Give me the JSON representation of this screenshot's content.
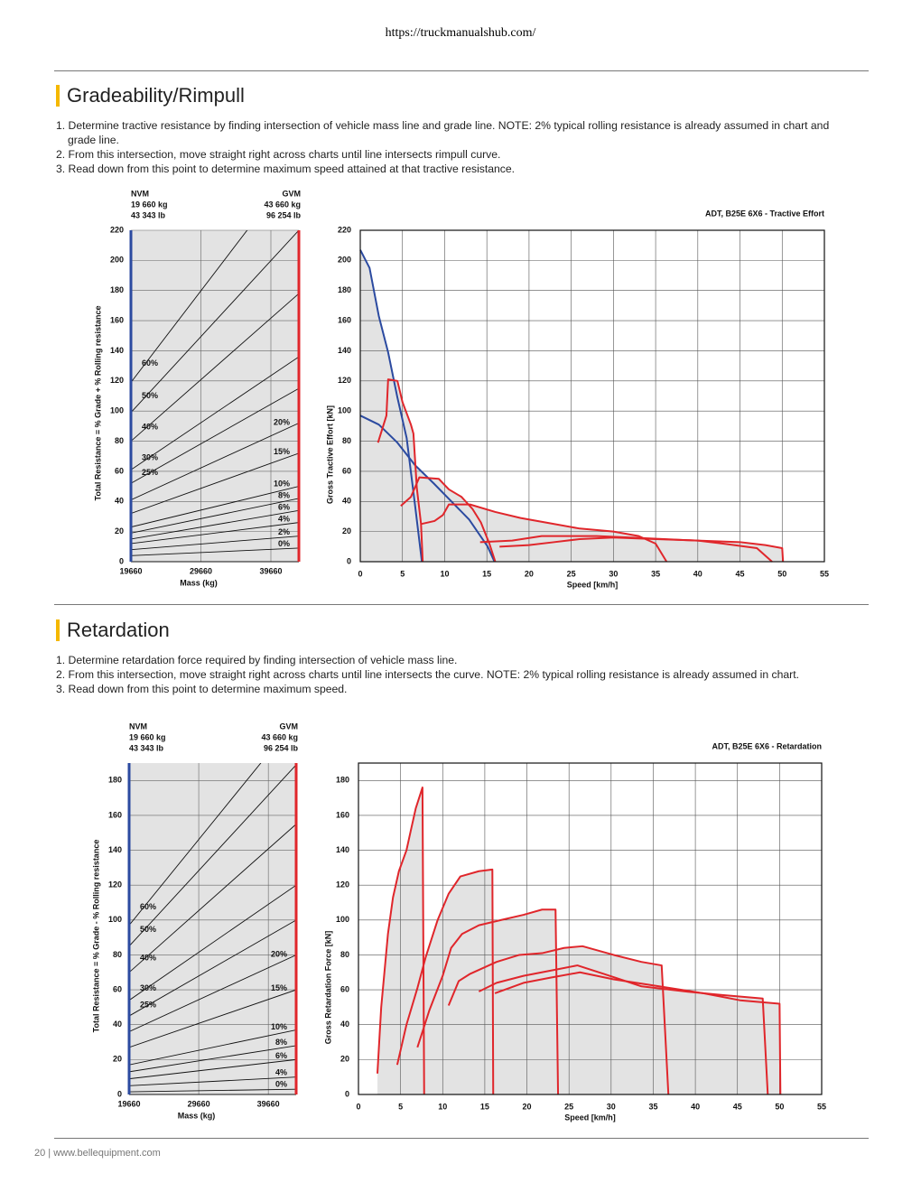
{
  "header": {
    "url": "https://truckmanualshub.com/"
  },
  "sections": [
    {
      "title": "Gradeability/Rimpull",
      "steps": [
        "1. Determine tractive resistance by finding intersection of vehicle mass line and grade line. NOTE: 2% typical rolling resistance is already assumed in chart and grade line.",
        "2. From this intersection, move straight right across charts until line intersects rimpull curve.",
        "3. Read down from this point to determine maximum speed attained at that tractive resistance."
      ],
      "mass_chart": {
        "type": "line",
        "nvm": {
          "label": "NVM",
          "mass_kg": "19 660 kg",
          "mass_lb": "43 343 lb",
          "color": "#2b4aa0"
        },
        "gvm": {
          "label": "GVM",
          "mass_kg": "43 660 kg",
          "mass_lb": "96 254 lb",
          "color": "#e0262b"
        },
        "y_label": "Total Resistance = % Grade + % Rolling resistance",
        "x_label": "Mass (kg)",
        "x": [
          19660,
          43660
        ],
        "xlim": [
          19660,
          43660
        ],
        "xticks": [
          19660,
          29660,
          39660
        ],
        "ylim": [
          0,
          220
        ],
        "yticks": [
          0,
          20,
          40,
          60,
          80,
          100,
          120,
          140,
          160,
          180,
          200,
          220
        ],
        "grid": true,
        "series": [
          {
            "name": "0%",
            "values": [
              4,
              9
            ]
          },
          {
            "name": "2%",
            "values": [
              8,
              17
            ]
          },
          {
            "name": "4%",
            "values": [
              12,
              26
            ]
          },
          {
            "name": "6%",
            "values": [
              15,
              34
            ]
          },
          {
            "name": "8%",
            "values": [
              19,
              42
            ]
          },
          {
            "name": "10%",
            "values": [
              23,
              50
            ]
          },
          {
            "name": "15%",
            "values": [
              32,
              72
            ]
          },
          {
            "name": "20%",
            "values": [
              41,
              92
            ]
          },
          {
            "name": "25%",
            "values": [
              52,
              115
            ]
          },
          {
            "name": "30%",
            "values": [
              61,
              136
            ]
          },
          {
            "name": "40%",
            "values": [
              80,
              178
            ]
          },
          {
            "name": "50%",
            "values": [
              99,
              220
            ]
          },
          {
            "name": "60%",
            "values": [
              119,
              265
            ]
          }
        ]
      },
      "speed_chart": {
        "type": "line",
        "title": "ADT, B25E 6X6 - Tractive Effort",
        "y_label": "Gross Tractive Effort [kN]",
        "x_label": "Speed [km/h]",
        "xlim": [
          0,
          55
        ],
        "xticks": [
          0,
          5,
          10,
          15,
          20,
          25,
          30,
          35,
          40,
          45,
          50,
          55
        ],
        "ylim": [
          0,
          220
        ],
        "yticks": [
          0,
          20,
          40,
          60,
          80,
          100,
          120,
          140,
          160,
          180,
          200,
          220
        ],
        "grid": true,
        "series": [
          {
            "color": "#2b4aa0",
            "x": [
              0,
              1.1,
              2.2,
              3.3,
              4.4,
              5.5,
              6.5,
              7.3
            ],
            "values": [
              207,
              195,
              163,
              139,
              109,
              82,
              37,
              0
            ]
          },
          {
            "color": "#2b4aa0",
            "x": [
              0,
              2.2,
              4.4,
              6.5,
              8.7,
              10.8,
              12.9,
              14,
              15.1,
              15.9
            ],
            "values": [
              97,
              91,
              79,
              64,
              52,
              40,
              28,
              19,
              10,
              0
            ]
          },
          {
            "color": "#e0262b",
            "x": [
              2.1,
              3.1,
              3.3,
              4.4,
              5,
              6,
              6.3,
              6.7,
              7.2,
              7.4
            ],
            "values": [
              79,
              97,
              121,
              120,
              106,
              91,
              85,
              49,
              25,
              0
            ]
          },
          {
            "color": "#e0262b",
            "x": [
              4.8,
              6,
              7,
              9.3,
              10.5,
              12,
              13.3,
              14.3,
              15.3,
              16
            ],
            "values": [
              37,
              43,
              56,
              55,
              48,
              43,
              35,
              26,
              12,
              0
            ]
          },
          {
            "color": "#e0262b",
            "x": [
              7.2,
              8.8,
              9.8,
              10.5,
              13,
              16,
              19,
              22,
              26,
              30,
              33,
              35,
              36.3
            ],
            "values": [
              25,
              27,
              31,
              38,
              38,
              33,
              29,
              26,
              22,
              20,
              17,
              12,
              0
            ]
          },
          {
            "color": "#e0262b",
            "x": [
              14.2,
              18,
              21.5,
              24,
              28,
              32,
              36,
              40,
              43,
              47,
              48.8
            ],
            "values": [
              13,
              14,
              17,
              17,
              17,
              16,
              15,
              14,
              12,
              9,
              0
            ]
          },
          {
            "color": "#e0262b",
            "x": [
              16.5,
              20,
              23,
              26,
              30,
              35,
              40,
              45,
              48,
              50,
              50.1
            ],
            "values": [
              10,
              11,
              13,
              15,
              16,
              15,
              14,
              13,
              11,
              9,
              0
            ]
          }
        ]
      }
    },
    {
      "title": "Retardation",
      "steps": [
        "1. Determine retardation force required by finding intersection of vehicle mass line.",
        "2. From this intersection, move straight right across charts until line intersects the curve. NOTE: 2% typical rolling resistance is already assumed in chart.",
        "3. Read down from this point to determine maximum speed."
      ],
      "mass_chart": {
        "type": "line",
        "nvm": {
          "label": "NVM",
          "mass_kg": "19 660 kg",
          "mass_lb": "43 343 lb",
          "color": "#2b4aa0"
        },
        "gvm": {
          "label": "GVM",
          "mass_kg": "43 660 kg",
          "mass_lb": "96 254 lb",
          "color": "#e0262b"
        },
        "y_label": "Total Resistance = % Grade - % Rolling resistance",
        "x_label": "Mass (kg)",
        "x": [
          19660,
          43660
        ],
        "xlim": [
          19660,
          43660
        ],
        "xticks": [
          19660,
          29660,
          39660
        ],
        "ylim": [
          0,
          190
        ],
        "yticks": [
          0,
          20,
          40,
          60,
          80,
          100,
          120,
          140,
          160,
          180
        ],
        "grid": true,
        "series": [
          {
            "name": "0%",
            "values": [
              1.5,
              3
            ]
          },
          {
            "name": "4%",
            "values": [
              5,
              10
            ]
          },
          {
            "name": "6%",
            "values": [
              9,
              20
            ]
          },
          {
            "name": "8%",
            "values": [
              13,
              28
            ]
          },
          {
            "name": "10%",
            "values": [
              17,
              37
            ]
          },
          {
            "name": "15%",
            "values": [
              27,
              60
            ]
          },
          {
            "name": "20%",
            "values": [
              36,
              80
            ]
          },
          {
            "name": "25%",
            "values": [
              45,
              100
            ]
          },
          {
            "name": "30%",
            "values": [
              54,
              120
            ]
          },
          {
            "name": "40%",
            "values": [
              70,
              155
            ]
          },
          {
            "name": "50%",
            "values": [
              85,
              189
            ]
          },
          {
            "name": "60%",
            "values": [
              97,
              215
            ]
          }
        ]
      },
      "speed_chart": {
        "type": "line",
        "title": "ADT, B25E 6X6 - Retardation",
        "y_label": "Gross Retardation Force [kN]",
        "x_label": "Speed [km/h]",
        "xlim": [
          0,
          55
        ],
        "xticks": [
          0,
          5,
          10,
          15,
          20,
          25,
          30,
          35,
          40,
          45,
          50,
          55
        ],
        "ylim": [
          0,
          190
        ],
        "yticks": [
          0,
          20,
          40,
          60,
          80,
          100,
          120,
          140,
          160,
          180
        ],
        "grid": true,
        "series": [
          {
            "color": "#e0262b",
            "x": [
              2.25,
              2.7,
              3.5,
              4.1,
              4.8,
              5.7,
              6.2,
              6.8,
              7.6,
              7.8
            ],
            "values": [
              12,
              50,
              92,
              113,
              128,
              140,
              151,
              164,
              176,
              0
            ]
          },
          {
            "color": "#e0262b",
            "x": [
              4.6,
              5.7,
              7,
              8,
              9.4,
              10.7,
              12.1,
              14.3,
              15.9,
              16
            ],
            "values": [
              17,
              40,
              61,
              79,
              100,
              115,
              125,
              128,
              129,
              0
            ]
          },
          {
            "color": "#e0262b",
            "x": [
              7,
              8.4,
              10,
              11,
              12.3,
              14.3,
              16.9,
              19.6,
              21.8,
              23.4,
              23.7
            ],
            "values": [
              27,
              48,
              68,
              84,
              92,
              97,
              100,
              103,
              106,
              106,
              0
            ]
          },
          {
            "color": "#e0262b",
            "x": [
              10.7,
              11.9,
              13.2,
              16.4,
              19.1,
              21.8,
              24.4,
              26.6,
              30.3,
              33.6,
              36,
              36.8
            ],
            "values": [
              51,
              65,
              69,
              76,
              80,
              81,
              84,
              85,
              80,
              76,
              74,
              0
            ]
          },
          {
            "color": "#e0262b",
            "x": [
              14.3,
              16.4,
              19.6,
              22.8,
              26,
              29.2,
              33.6,
              38.9,
              43.2,
              48,
              48.6
            ],
            "values": [
              59,
              64,
              68,
              71,
              74,
              69,
              62,
              59,
              57,
              55,
              0
            ]
          },
          {
            "color": "#e0262b",
            "x": [
              16.2,
              19.6,
              22.8,
              26.3,
              30.3,
              35.7,
              41,
              45.3,
              50,
              50.1
            ],
            "values": [
              58,
              64,
              67,
              70,
              66,
              62,
              58,
              54,
              52,
              0
            ]
          }
        ]
      }
    }
  ],
  "footer": {
    "text": "20 | www.bellequipment.com"
  }
}
